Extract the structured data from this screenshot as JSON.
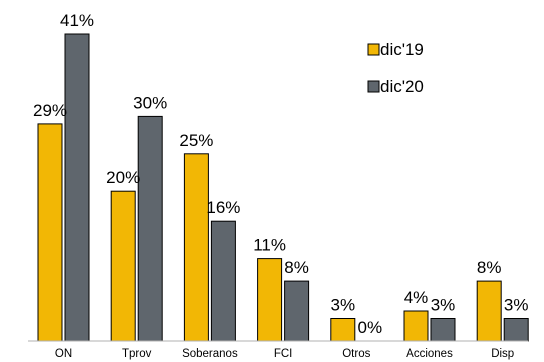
{
  "chart_data": {
    "type": "bar",
    "categories": [
      "ON",
      "Tprov",
      "Soberanos",
      "FCI",
      "Otros",
      "Acciones",
      "Disp"
    ],
    "series": [
      {
        "name": "dic'19",
        "values": [
          29,
          20,
          25,
          11,
          3,
          4,
          8
        ],
        "labels": [
          "29%",
          "20%",
          "25%",
          "11%",
          "3%",
          "4%",
          "8%"
        ],
        "color": "#F2B705"
      },
      {
        "name": "dic'20",
        "values": [
          41,
          30,
          16,
          8,
          0,
          3,
          3
        ],
        "labels": [
          "41%",
          "30%",
          "16%",
          "8%",
          "0%",
          "3%",
          "3%"
        ],
        "color": "#5F666D"
      }
    ],
    "ylim": [
      0,
      41
    ],
    "grid": false,
    "legend": "top-right",
    "title": "",
    "xlabel": "",
    "ylabel": ""
  }
}
